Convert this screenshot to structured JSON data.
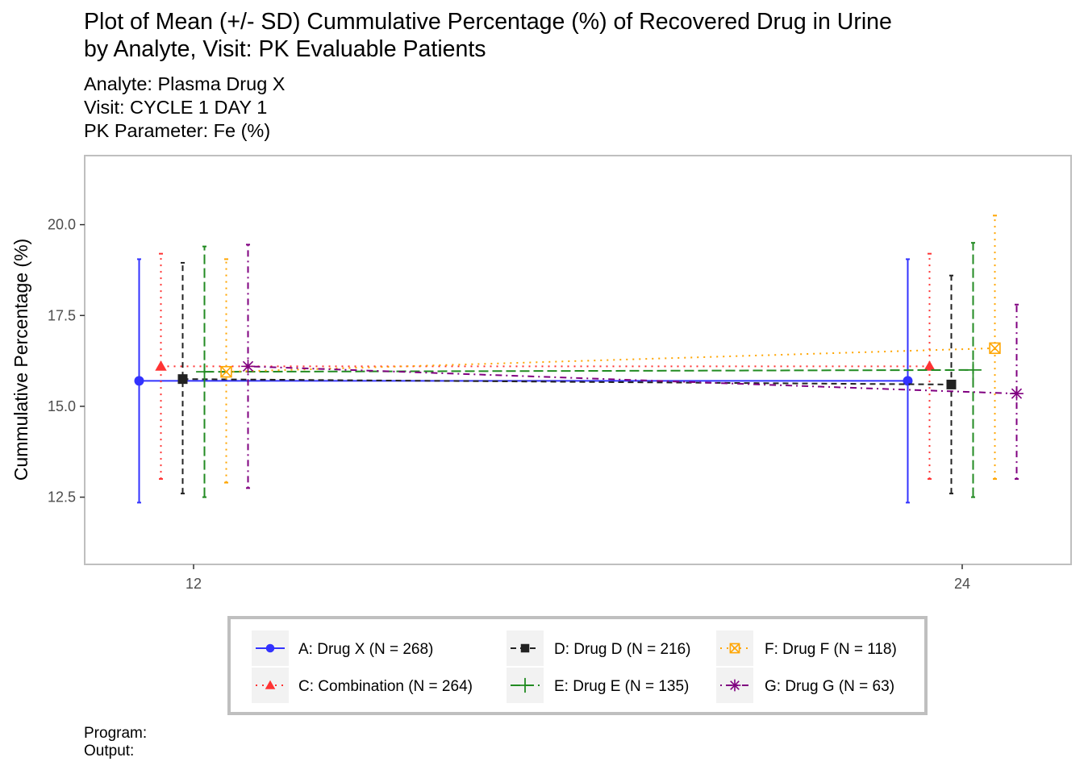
{
  "header": {
    "title_lines": [
      "Plot of Mean (+/- SD) Cummulative Percentage (%) of Recovered Drug in Urine",
      "by Analyte, Visit: PK Evaluable Patients"
    ],
    "subtitle_lines": [
      "Analyte: Plasma Drug X",
      "Visit: CYCLE 1 DAY 1",
      "PK Parameter: Fe (%)"
    ]
  },
  "footer": {
    "program_label": "Program:",
    "output_label": "Output:"
  },
  "chart_data": {
    "type": "line",
    "xlabel": "",
    "ylabel": "Cummulative Percentage (%)",
    "x": [
      12,
      24
    ],
    "x_ticks": [
      "12",
      "24"
    ],
    "y_ticks": [
      "12.5",
      "15.0",
      "17.5",
      "20.0"
    ],
    "xlim": [
      10.3,
      25.7
    ],
    "ylim": [
      10.65,
      21.9
    ],
    "grid": false,
    "error_bars": "mean +/- SD",
    "dodge": true,
    "legend_position": "bottom",
    "series": [
      {
        "name": "A: Drug X (N = 268)",
        "color": "#3333ff",
        "linetype": "solid",
        "marker": "circle",
        "mean": [
          15.7,
          15.7
        ],
        "lower": [
          12.35,
          12.35
        ],
        "upper": [
          19.05,
          19.05
        ]
      },
      {
        "name": "C: Combination (N = 264)",
        "color": "#ff3333",
        "linetype": "dotted",
        "marker": "triangle",
        "mean": [
          16.1,
          16.1
        ],
        "lower": [
          13.0,
          13.0
        ],
        "upper": [
          19.2,
          19.2
        ]
      },
      {
        "name": "D: Drug D (N = 216)",
        "color": "#222222",
        "linetype": "dashed",
        "marker": "square",
        "mean": [
          15.75,
          15.6
        ],
        "lower": [
          12.6,
          12.6
        ],
        "upper": [
          18.95,
          18.6
        ]
      },
      {
        "name": "E: Drug E (N = 135)",
        "color": "#228b22",
        "linetype": "longdash",
        "marker": "plus",
        "mean": [
          15.95,
          16.0
        ],
        "lower": [
          12.5,
          12.5
        ],
        "upper": [
          19.4,
          19.5
        ]
      },
      {
        "name": "F: Drug F (N = 118)",
        "color": "#ffa500",
        "linetype": "dotted",
        "marker": "square-x",
        "mean": [
          15.95,
          16.6
        ],
        "lower": [
          12.9,
          13.0
        ],
        "upper": [
          19.05,
          20.25
        ]
      },
      {
        "name": "G: Drug G (N = 63)",
        "color": "#800080",
        "linetype": "dotdash",
        "marker": "asterisk",
        "mean": [
          16.1,
          15.35
        ],
        "lower": [
          12.75,
          13.0
        ],
        "upper": [
          19.45,
          17.8
        ]
      }
    ]
  }
}
